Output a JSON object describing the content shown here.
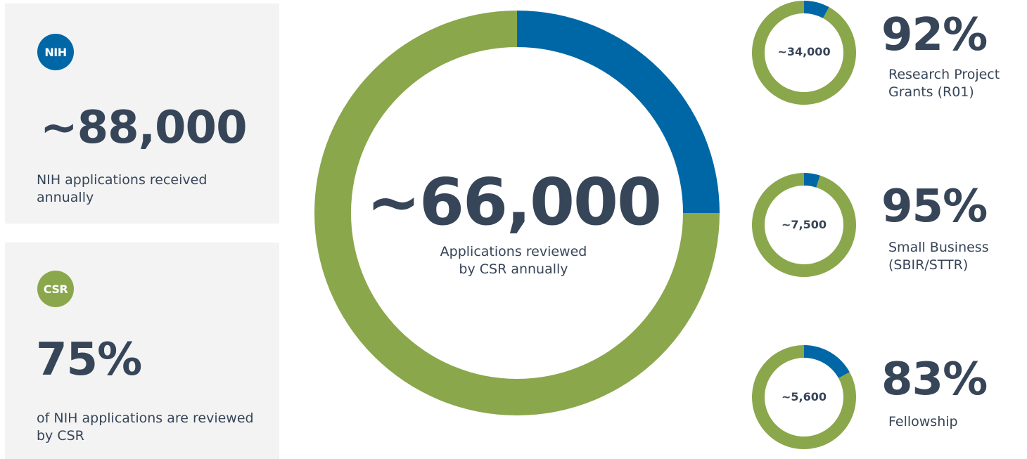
{
  "colors": {
    "blue": "#0067a6",
    "green": "#8aa74c",
    "text": "#374558",
    "card_bg": "#f3f3f3"
  },
  "nih_card": {
    "badge": "NIH",
    "value": "~88,000",
    "description": "NIH applications received annually"
  },
  "csr_card": {
    "badge": "CSR",
    "value": "75%",
    "description": "of NIH applications are reviewed by CSR"
  },
  "main": {
    "value": "~66,000",
    "description_line1": "Applications reviewed",
    "description_line2": "by CSR annually"
  },
  "breakdown": [
    {
      "count": "~34,000",
      "percent": "92%",
      "line1": "Research Project",
      "line2": "Grants (R01)"
    },
    {
      "count": "~7,500",
      "percent": "95%",
      "line1": "Small Business",
      "line2": "(SBIR/STTR)"
    },
    {
      "count": "~5,600",
      "percent": "83%",
      "line1": "Fellowship",
      "line2": ""
    }
  ],
  "chart_data": [
    {
      "type": "pie",
      "center_label": "~66,000",
      "values": [
        25,
        75
      ],
      "colors": [
        "#0067a6",
        "#8aa74c"
      ]
    },
    {
      "type": "pie",
      "center_label": "~34,000",
      "values": [
        8,
        92
      ],
      "colors": [
        "#0067a6",
        "#8aa74c"
      ]
    },
    {
      "type": "pie",
      "center_label": "~7,500",
      "values": [
        5,
        95
      ],
      "colors": [
        "#0067a6",
        "#8aa74c"
      ]
    },
    {
      "type": "pie",
      "center_label": "~5,600",
      "values": [
        17,
        83
      ],
      "colors": [
        "#0067a6",
        "#8aa74c"
      ]
    }
  ]
}
